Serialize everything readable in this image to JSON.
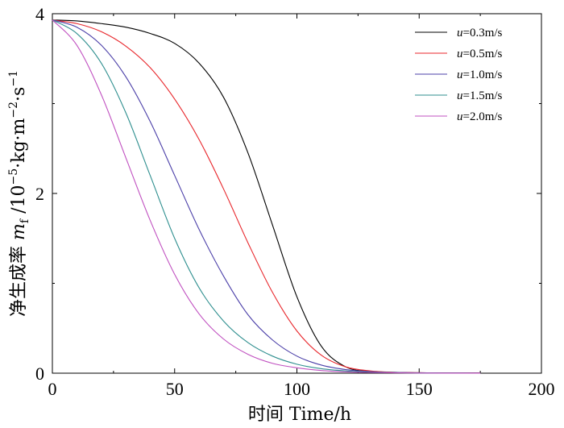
{
  "chart_data": {
    "type": "line",
    "title": "",
    "xlabel": "时间 Time/h",
    "ylabel": "净生成率 m_f /10^-5·kg·m^-2·s^-1",
    "ylabel_parts": {
      "cn": "净生成率 ",
      "sym": "m",
      "sub": "f",
      "mid": " /10",
      "exp1": "−5",
      "unit1": "·kg·m",
      "exp2": "−2",
      "unit2": "·s",
      "exp3": "−1"
    },
    "xlim": [
      0,
      200
    ],
    "ylim": [
      0,
      4
    ],
    "xticks": [
      0,
      50,
      100,
      150,
      200
    ],
    "yticks": [
      0,
      2,
      4
    ],
    "xtick_labels": [
      "0",
      "50",
      "100",
      "150",
      "200"
    ],
    "ytick_labels": [
      "0",
      "2",
      "4"
    ],
    "grid": false,
    "legend_position": "top-right",
    "series": [
      {
        "name": "u=0.3m/s",
        "name_var": "u",
        "name_rest": "=0.3m/s",
        "color": "#000000",
        "x": [
          0,
          10,
          20,
          30,
          40,
          50,
          60,
          70,
          80,
          90,
          100,
          110,
          120,
          130,
          140,
          150,
          160,
          175
        ],
        "y": [
          3.93,
          3.92,
          3.89,
          3.85,
          3.78,
          3.67,
          3.45,
          3.07,
          2.45,
          1.65,
          0.85,
          0.3,
          0.07,
          0.02,
          0.01,
          0.005,
          0.004,
          0.003
        ]
      },
      {
        "name": "u=0.5m/s",
        "name_var": "u",
        "name_rest": "=0.5m/s",
        "color": "#e8262b",
        "x": [
          0,
          10,
          20,
          30,
          40,
          50,
          60,
          70,
          80,
          90,
          100,
          110,
          120,
          130,
          140,
          150,
          160,
          175
        ],
        "y": [
          3.93,
          3.89,
          3.8,
          3.64,
          3.4,
          3.05,
          2.6,
          2.05,
          1.45,
          0.9,
          0.47,
          0.2,
          0.07,
          0.025,
          0.01,
          0.005,
          0.003,
          0.002
        ]
      },
      {
        "name": "u=1.0m/s",
        "name_var": "u",
        "name_rest": "=1.0m/s",
        "color": "#4b3fa8",
        "x": [
          0,
          10,
          20,
          30,
          40,
          50,
          60,
          70,
          80,
          90,
          100,
          110,
          120,
          130,
          140,
          150,
          160,
          175
        ],
        "y": [
          3.93,
          3.85,
          3.65,
          3.3,
          2.8,
          2.2,
          1.6,
          1.08,
          0.65,
          0.37,
          0.19,
          0.09,
          0.04,
          0.018,
          0.008,
          0.004,
          0.002,
          0.001
        ]
      },
      {
        "name": "u=1.5m/s",
        "name_var": "u",
        "name_rest": "=1.5m/s",
        "color": "#2f8f8f",
        "x": [
          0,
          10,
          20,
          30,
          40,
          50,
          60,
          70,
          80,
          90,
          100,
          110,
          120,
          130,
          140,
          150,
          160,
          175
        ],
        "y": [
          3.93,
          3.78,
          3.45,
          2.9,
          2.2,
          1.5,
          0.95,
          0.58,
          0.34,
          0.19,
          0.1,
          0.05,
          0.025,
          0.012,
          0.006,
          0.003,
          0.002,
          0.001
        ]
      },
      {
        "name": "u=2.0m/s",
        "name_var": "u",
        "name_rest": "=2.0m/s",
        "color": "#c050c0",
        "x": [
          0,
          10,
          20,
          30,
          40,
          50,
          60,
          70,
          80,
          90,
          100,
          110,
          120,
          130,
          140,
          150,
          160,
          175
        ],
        "y": [
          3.93,
          3.65,
          3.1,
          2.4,
          1.7,
          1.1,
          0.66,
          0.38,
          0.21,
          0.11,
          0.06,
          0.03,
          0.015,
          0.008,
          0.004,
          0.002,
          0.001,
          0.001
        ]
      }
    ]
  }
}
